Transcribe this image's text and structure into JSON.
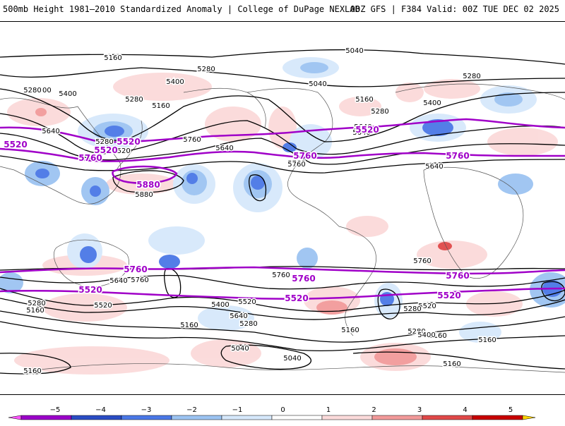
{
  "header": {
    "title_left": "500mb Height 1981–2010 Standardized Anomaly | College of DuPage NEXLAB",
    "title_right": "00Z GFS | F384 Valid: 00Z TUE DEC 02 2025"
  },
  "map": {
    "projection": "equirectangular global",
    "height_contour_labels": [
      {
        "text": "5160"
      },
      {
        "text": "5280"
      },
      {
        "text": "5040"
      },
      {
        "text": "5400"
      },
      {
        "text": "5280"
      },
      {
        "text": "5400"
      },
      {
        "text": "5160"
      },
      {
        "text": "5280"
      },
      {
        "text": "5400"
      },
      {
        "text": "5040"
      },
      {
        "text": "5160"
      },
      {
        "text": "5280"
      },
      {
        "text": "5400"
      },
      {
        "text": "5280"
      },
      {
        "text": "5640"
      },
      {
        "text": "5640"
      },
      {
        "text": "5280"
      },
      {
        "text": "5520"
      },
      {
        "text": "5760"
      },
      {
        "text": "5640"
      },
      {
        "text": "5760"
      },
      {
        "text": "5640"
      },
      {
        "text": "5880"
      },
      {
        "text": "5880"
      },
      {
        "text": "5760"
      },
      {
        "text": "5760"
      },
      {
        "text": "5640"
      },
      {
        "text": "5760"
      },
      {
        "text": "5760"
      },
      {
        "text": "5640"
      },
      {
        "text": "5640"
      },
      {
        "text": "5520"
      },
      {
        "text": "5520"
      },
      {
        "text": "5280"
      },
      {
        "text": "5400"
      },
      {
        "text": "5280"
      },
      {
        "text": "5160"
      },
      {
        "text": "5280"
      },
      {
        "text": "5160"
      },
      {
        "text": "5520"
      },
      {
        "text": "5160"
      },
      {
        "text": "5040"
      },
      {
        "text": "5040"
      },
      {
        "text": "5160"
      },
      {
        "text": "5280"
      },
      {
        "text": "5400"
      },
      {
        "text": "5160"
      },
      {
        "text": "5160"
      },
      {
        "text": "5160"
      }
    ],
    "highlight_contour_labels": [
      {
        "text": "5520"
      },
      {
        "text": "5520"
      },
      {
        "text": "5520"
      },
      {
        "text": "5520"
      },
      {
        "text": "5760"
      },
      {
        "text": "5760"
      },
      {
        "text": "5760"
      },
      {
        "text": "5880"
      },
      {
        "text": "5760"
      },
      {
        "text": "5760"
      },
      {
        "text": "5760"
      },
      {
        "text": "5520"
      },
      {
        "text": "5520"
      },
      {
        "text": "5520"
      }
    ],
    "colors": {
      "highlight_contour": "#a000c8",
      "contour": "#000000",
      "coastline": "#555555"
    }
  },
  "colorbar": {
    "ticks": [
      "−5",
      "−4",
      "−3",
      "−2",
      "−1",
      "0",
      "1",
      "2",
      "3",
      "4",
      "5"
    ],
    "colors": [
      "#9b00c9",
      "#2a4cc4",
      "#4a78e6",
      "#9cc4f2",
      "#d6e8fb",
      "#ffffff",
      "#fbdada",
      "#f29a9a",
      "#e04848",
      "#c80000",
      "#ff9a00"
    ],
    "min_color": "#ff55ff",
    "max_color": "#ffd400"
  }
}
